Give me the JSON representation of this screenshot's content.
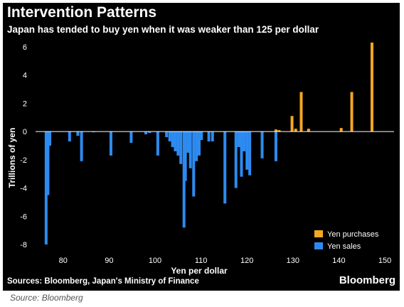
{
  "header": {
    "title": "Intervention Patterns",
    "subtitle": "Japan has tended to buy yen when it was weaker than 125 per dollar"
  },
  "footer": {
    "sources": "Sources: Bloomberg, Japan's Ministry of Finance",
    "brand": "Bloomberg"
  },
  "caption": "Source: Bloomberg",
  "colors": {
    "background": "#000000",
    "purchases": "#f5a623",
    "sales": "#2d8bf0",
    "zero_line": "#ffffff",
    "text": "#ffffff"
  },
  "chart_data": {
    "type": "bar",
    "xlabel": "Yen per dollar",
    "ylabel": "Trillions of yen",
    "xlim": [
      74,
      152
    ],
    "ylim": [
      -8.5,
      7
    ],
    "x_ticks": [
      80,
      90,
      100,
      110,
      120,
      130,
      140,
      150
    ],
    "y_ticks": [
      6,
      4,
      2,
      0,
      -2,
      -4,
      -6,
      -8
    ],
    "grid": false,
    "legend_position": "bottom-right",
    "series": [
      {
        "name": "Yen purchases",
        "color": "#f5a623",
        "points": [
          {
            "x": 126.3,
            "y": 0.15
          },
          {
            "x": 127.0,
            "y": 0.1
          },
          {
            "x": 129.8,
            "y": 1.1
          },
          {
            "x": 130.6,
            "y": 0.2
          },
          {
            "x": 131.8,
            "y": 2.8
          },
          {
            "x": 133.4,
            "y": 0.2
          },
          {
            "x": 140.5,
            "y": 0.25
          },
          {
            "x": 142.8,
            "y": 2.8
          },
          {
            "x": 147.2,
            "y": 6.3
          }
        ]
      },
      {
        "name": "Yen sales",
        "color": "#2d8bf0",
        "points": [
          {
            "x": 76.3,
            "y": -8.0
          },
          {
            "x": 76.7,
            "y": -4.5
          },
          {
            "x": 77.1,
            "y": -1.0
          },
          {
            "x": 81.4,
            "y": -0.7
          },
          {
            "x": 83.2,
            "y": -0.3
          },
          {
            "x": 84.0,
            "y": -2.1
          },
          {
            "x": 86.6,
            "y": -0.05
          },
          {
            "x": 90.4,
            "y": -1.7
          },
          {
            "x": 94.8,
            "y": -0.8
          },
          {
            "x": 98.0,
            "y": -0.2
          },
          {
            "x": 98.8,
            "y": -0.1
          },
          {
            "x": 100.6,
            "y": -1.7
          },
          {
            "x": 102.5,
            "y": -0.4
          },
          {
            "x": 103.2,
            "y": -0.7
          },
          {
            "x": 103.8,
            "y": -1.1
          },
          {
            "x": 104.4,
            "y": -1.4
          },
          {
            "x": 105.0,
            "y": -1.7
          },
          {
            "x": 105.6,
            "y": -2.3
          },
          {
            "x": 106.3,
            "y": -6.8
          },
          {
            "x": 106.6,
            "y": -3.5
          },
          {
            "x": 107.2,
            "y": -1.5
          },
          {
            "x": 107.7,
            "y": -2.6
          },
          {
            "x": 108.4,
            "y": -4.6
          },
          {
            "x": 109.0,
            "y": -2.1
          },
          {
            "x": 109.6,
            "y": -1.7
          },
          {
            "x": 110.1,
            "y": -0.6
          },
          {
            "x": 111.7,
            "y": -0.7
          },
          {
            "x": 112.5,
            "y": -0.7
          },
          {
            "x": 115.2,
            "y": -5.1
          },
          {
            "x": 117.6,
            "y": -4.0
          },
          {
            "x": 118.2,
            "y": -1.1
          },
          {
            "x": 118.8,
            "y": -3.2
          },
          {
            "x": 119.4,
            "y": -1.4
          },
          {
            "x": 120.0,
            "y": -2.7
          },
          {
            "x": 120.6,
            "y": -3.1
          },
          {
            "x": 123.3,
            "y": -1.9
          },
          {
            "x": 126.3,
            "y": -2.1
          }
        ]
      }
    ]
  }
}
